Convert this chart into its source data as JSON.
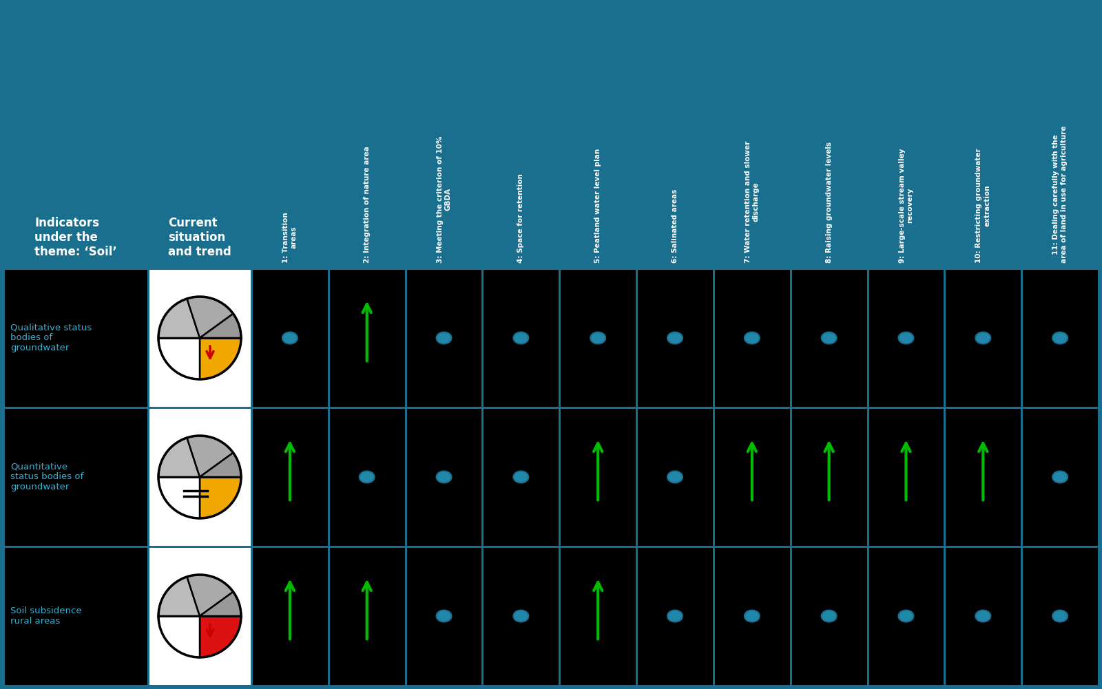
{
  "bg_color": "#1a6e8e",
  "cell_bg": "#000000",
  "header_text_color": "#ffffff",
  "indicator_text_color": "#3ab0d0",
  "cell_border_color": "#1a6e8e",
  "arrow_color": "#00bb00",
  "red_color": "#cc0000",
  "indicators": [
    "Qualitative status\nbodies of\ngroundwater",
    "Quantitative\nstatus bodies of\ngroundwater",
    "Soil subsidence\nrural areas"
  ],
  "col_headers": [
    "1: Transition\nareas",
    "2: Integration of nature area",
    "3: Meeting the criterion of 10%\nGBDA",
    "4: Space for retention",
    "5: Peatland water level plan",
    "6: Salinated areas",
    "7: Water retention and slower\ndischarge",
    "8: Raising groundwater levels",
    "9: Large-scale stream valley\nrecovery",
    "10: Restricting groundwater\nextraction",
    "11: Dealing carefully with the\narea of land in use for agriculture"
  ],
  "impacts": [
    [
      false,
      true,
      false,
      false,
      false,
      false,
      false,
      false,
      false,
      false,
      false
    ],
    [
      true,
      false,
      false,
      false,
      true,
      false,
      true,
      true,
      true,
      true,
      false
    ],
    [
      true,
      true,
      false,
      false,
      true,
      false,
      false,
      false,
      false,
      false,
      false
    ]
  ],
  "pie_configs": [
    {
      "top_color": "#f0a800",
      "bottom_right_color": "#999999",
      "trend": "down_red"
    },
    {
      "top_color": "#f0a800",
      "bottom_right_color": "#999999",
      "trend": "equal"
    },
    {
      "top_color": "#dd1111",
      "bottom_right_color": "#999999",
      "trend": "down_red"
    }
  ]
}
